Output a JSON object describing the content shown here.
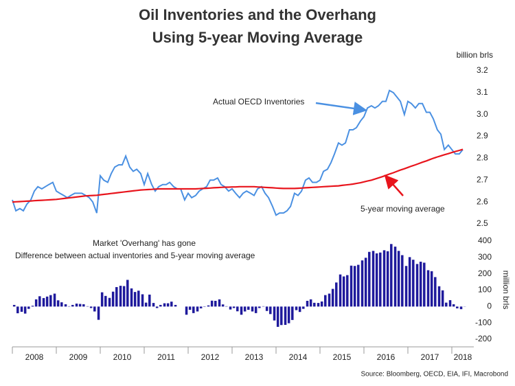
{
  "chart_data": {
    "type": "line",
    "title": "Oil Inventories and the Overhang",
    "subtitle": "Using 5-year Moving Average",
    "ylabel": "billion brls",
    "y2label": "million brls",
    "source": "Source: Bloomberg, OECD, EIA, IFI, Macrobond",
    "annotations": [
      "Actual OECD Inventories",
      "5-year moving average",
      "Market 'Overhang' has gone",
      "Difference between actual inventories and 5-year moving average"
    ],
    "xlim": [
      2008,
      2018.5
    ],
    "xticks": [
      {
        "value": 2008.5,
        "label": "2008"
      },
      {
        "value": 2009.5,
        "label": "2009"
      },
      {
        "value": 2010.5,
        "label": "2010"
      },
      {
        "value": 2011.5,
        "label": "2011"
      },
      {
        "value": 2012.5,
        "label": "2012"
      },
      {
        "value": 2013.5,
        "label": "2013"
      },
      {
        "value": 2014.5,
        "label": "2014"
      },
      {
        "value": 2015.5,
        "label": "2015"
      },
      {
        "value": 2016.5,
        "label": "2016"
      },
      {
        "value": 2017.5,
        "label": "2017"
      },
      {
        "value": 2018.25,
        "label": "2018"
      }
    ],
    "ylim": [
      2.5,
      3.2
    ],
    "yticks": [
      2.5,
      2.6,
      2.7,
      2.8,
      2.9,
      {
        "value": 3,
        "label": "3.0"
      },
      3.1,
      3.2
    ],
    "y2lim": [
      -200,
      400
    ],
    "y2ticks": [
      -200,
      -100,
      0,
      100,
      200,
      300,
      400
    ],
    "x": [
      2008,
      2008.08,
      2008.17,
      2008.25,
      2008.33,
      2008.42,
      2008.5,
      2008.58,
      2008.67,
      2008.75,
      2008.83,
      2008.92,
      2009,
      2009.08,
      2009.17,
      2009.25,
      2009.33,
      2009.42,
      2009.5,
      2009.58,
      2009.67,
      2009.75,
      2009.83,
      2009.92,
      2010,
      2010.08,
      2010.17,
      2010.25,
      2010.33,
      2010.42,
      2010.5,
      2010.58,
      2010.67,
      2010.75,
      2010.83,
      2010.92,
      2011,
      2011.08,
      2011.17,
      2011.25,
      2011.33,
      2011.42,
      2011.5,
      2011.58,
      2011.67,
      2011.75,
      2011.83,
      2011.92,
      2012,
      2012.08,
      2012.17,
      2012.25,
      2012.33,
      2012.42,
      2012.5,
      2012.58,
      2012.67,
      2012.75,
      2012.83,
      2012.92,
      2013,
      2013.08,
      2013.17,
      2013.25,
      2013.33,
      2013.42,
      2013.5,
      2013.58,
      2013.67,
      2013.75,
      2013.83,
      2013.92,
      2014,
      2014.08,
      2014.17,
      2014.25,
      2014.33,
      2014.42,
      2014.5,
      2014.58,
      2014.67,
      2014.75,
      2014.83,
      2014.92,
      2015,
      2015.08,
      2015.17,
      2015.25,
      2015.33,
      2015.42,
      2015.5,
      2015.58,
      2015.67,
      2015.75,
      2015.83,
      2015.92,
      2016,
      2016.08,
      2016.17,
      2016.25,
      2016.33,
      2016.42,
      2016.5,
      2016.58,
      2016.67,
      2016.75,
      2016.83,
      2016.92,
      2017,
      2017.08,
      2017.17,
      2017.25,
      2017.33,
      2017.42,
      2017.5,
      2017.58,
      2017.67,
      2017.75,
      2017.83,
      2017.92,
      2018,
      2018.08,
      2018.17,
      2018.25
    ],
    "series": [
      {
        "name": "Actual OECD Inventories",
        "color": "#4a90e2",
        "values": [
          2.61,
          2.56,
          2.57,
          2.56,
          2.59,
          2.61,
          2.65,
          2.67,
          2.66,
          2.67,
          2.68,
          2.69,
          2.65,
          2.64,
          2.63,
          2.62,
          2.63,
          2.64,
          2.64,
          2.64,
          2.63,
          2.62,
          2.6,
          2.55,
          2.72,
          2.7,
          2.69,
          2.73,
          2.76,
          2.77,
          2.77,
          2.81,
          2.76,
          2.74,
          2.75,
          2.73,
          2.68,
          2.73,
          2.68,
          2.65,
          2.67,
          2.68,
          2.68,
          2.69,
          2.67,
          2.66,
          2.66,
          2.61,
          2.64,
          2.62,
          2.63,
          2.65,
          2.66,
          2.67,
          2.7,
          2.7,
          2.71,
          2.68,
          2.67,
          2.65,
          2.66,
          2.64,
          2.62,
          2.64,
          2.65,
          2.64,
          2.63,
          2.66,
          2.67,
          2.64,
          2.62,
          2.58,
          2.54,
          2.55,
          2.55,
          2.56,
          2.58,
          2.64,
          2.63,
          2.65,
          2.7,
          2.71,
          2.69,
          2.69,
          2.7,
          2.74,
          2.75,
          2.78,
          2.82,
          2.87,
          2.86,
          2.87,
          2.93,
          2.93,
          2.94,
          2.97,
          2.99,
          3.03,
          3.04,
          3.03,
          3.04,
          3.06,
          3.06,
          3.11,
          3.1,
          3.08,
          3.06,
          3.0,
          3.06,
          3.05,
          3.03,
          3.05,
          3.05,
          3.01,
          3.01,
          2.98,
          2.93,
          2.91,
          2.84,
          2.86,
          2.84,
          2.82,
          2.82,
          2.84
        ]
      },
      {
        "name": "5-year moving average",
        "color": "#e8141c",
        "values": [
          2.6,
          2.601,
          2.602,
          2.603,
          2.604,
          2.605,
          2.606,
          2.607,
          2.608,
          2.609,
          2.61,
          2.611,
          2.612,
          2.614,
          2.616,
          2.618,
          2.62,
          2.622,
          2.624,
          2.626,
          2.628,
          2.629,
          2.63,
          2.631,
          2.633,
          2.635,
          2.637,
          2.639,
          2.641,
          2.643,
          2.645,
          2.647,
          2.649,
          2.651,
          2.653,
          2.655,
          2.656,
          2.657,
          2.658,
          2.659,
          2.66,
          2.66,
          2.66,
          2.66,
          2.66,
          2.66,
          2.66,
          2.66,
          2.66,
          2.66,
          2.66,
          2.661,
          2.662,
          2.663,
          2.664,
          2.665,
          2.666,
          2.667,
          2.668,
          2.668,
          2.669,
          2.669,
          2.67,
          2.67,
          2.67,
          2.67,
          2.67,
          2.669,
          2.668,
          2.667,
          2.666,
          2.665,
          2.664,
          2.663,
          2.662,
          2.662,
          2.662,
          2.662,
          2.663,
          2.664,
          2.665,
          2.666,
          2.667,
          2.668,
          2.669,
          2.67,
          2.671,
          2.672,
          2.673,
          2.674,
          2.676,
          2.678,
          2.68,
          2.682,
          2.685,
          2.688,
          2.692,
          2.696,
          2.7,
          2.705,
          2.71,
          2.716,
          2.722,
          2.728,
          2.734,
          2.74,
          2.746,
          2.752,
          2.758,
          2.764,
          2.77,
          2.776,
          2.782,
          2.788,
          2.794,
          2.8,
          2.806,
          2.811,
          2.816,
          2.821,
          2.826,
          2.831,
          2.836,
          2.841
        ]
      },
      {
        "name": "Market 'Overhang'",
        "type": "bar",
        "axis": "y2",
        "color": "#1f1a9c",
        "values": [
          10,
          -41,
          -32,
          -43,
          -14,
          5,
          44,
          63,
          52,
          61,
          70,
          79,
          38,
          26,
          14,
          2,
          10,
          18,
          16,
          14,
          2,
          -9,
          -30,
          -81,
          87,
          65,
          53,
          91,
          119,
          127,
          125,
          163,
          111,
          89,
          97,
          75,
          24,
          73,
          22,
          -9,
          10,
          20,
          20,
          30,
          10,
          0,
          0,
          -50,
          -20,
          -40,
          -30,
          -11,
          -2,
          7,
          36,
          35,
          44,
          13,
          2,
          -18,
          -9,
          -29,
          -50,
          -30,
          -20,
          -30,
          -40,
          -9,
          2,
          -27,
          -46,
          -85,
          -124,
          -113,
          -112,
          -102,
          -82,
          -22,
          -33,
          -14,
          35,
          44,
          23,
          22,
          31,
          70,
          79,
          108,
          147,
          196,
          184,
          192,
          250,
          248,
          255,
          282,
          298,
          334,
          340,
          325,
          330,
          344,
          338,
          382,
          366,
          340,
          314,
          248,
          302,
          286,
          260,
          274,
          268,
          222,
          216,
          180,
          124,
          99,
          24,
          39,
          14,
          -11,
          -16,
          -1
        ]
      }
    ]
  }
}
